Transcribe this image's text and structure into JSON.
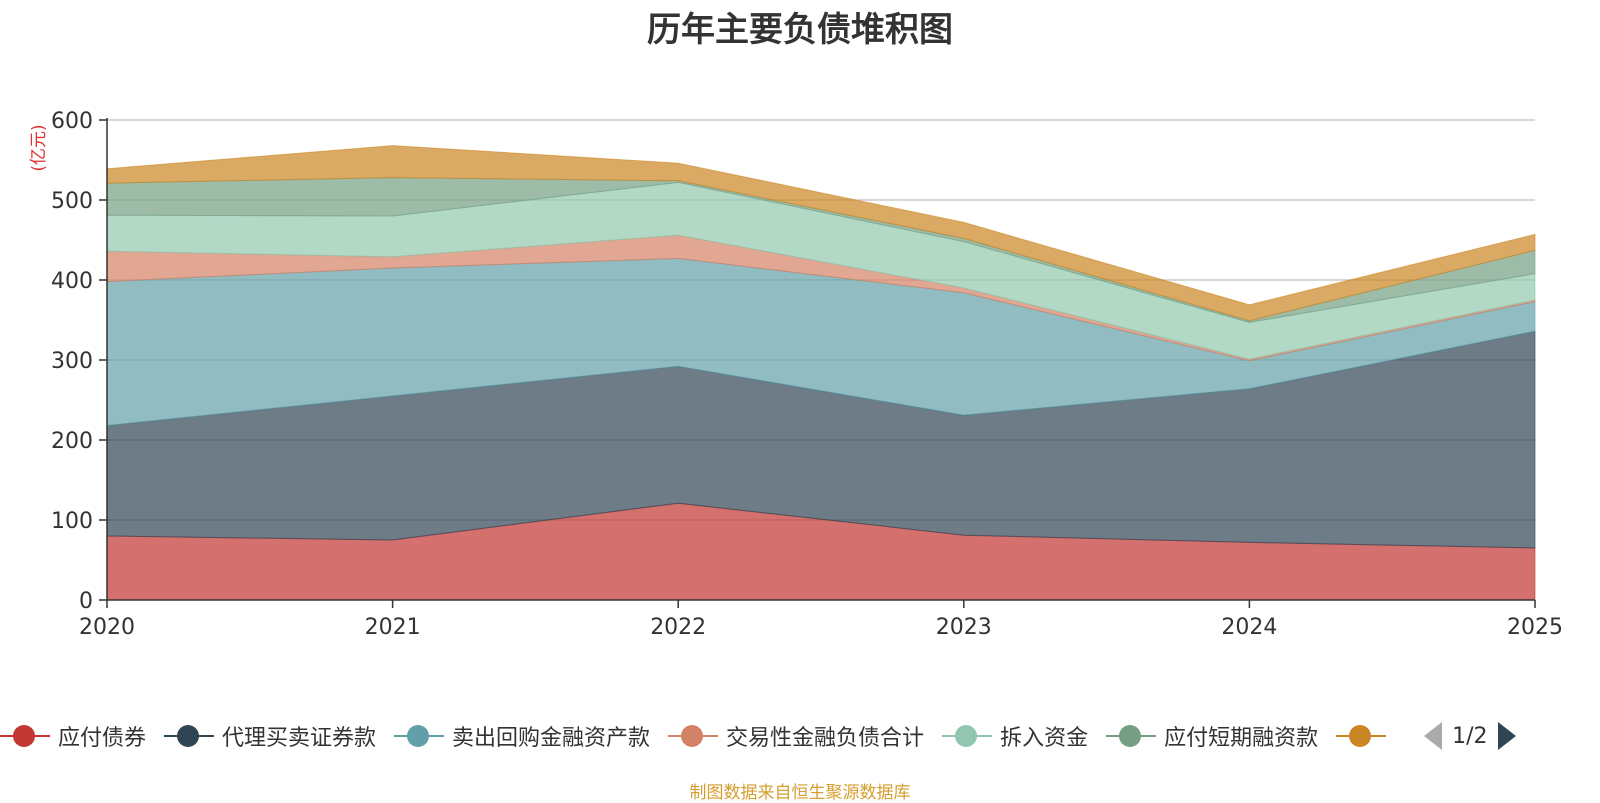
{
  "chart_data": {
    "type": "area",
    "stacked": true,
    "title": "历年主要负债堆积图",
    "ylabel": "(亿元)",
    "xlabel": "",
    "x": [
      "2020",
      "2021",
      "2022",
      "2023",
      "2024",
      "2025"
    ],
    "ylim": [
      0,
      600
    ],
    "yticks": [
      0,
      100,
      200,
      300,
      400,
      500,
      600
    ],
    "grid": true,
    "series": [
      {
        "name": "应付债券",
        "color": "#c23531",
        "values": [
          80,
          75,
          121,
          81,
          72,
          65
        ]
      },
      {
        "name": "代理买卖证券款",
        "color": "#2f4554",
        "values": [
          138,
          180,
          171,
          150,
          192,
          271
        ]
      },
      {
        "name": "卖出回购金融资产款",
        "color": "#61a0a8",
        "values": [
          180,
          160,
          135,
          153,
          35,
          37
        ]
      },
      {
        "name": "交易性金融负债合计",
        "color": "#d48265",
        "values": [
          38,
          14,
          29,
          6,
          2,
          2
        ]
      },
      {
        "name": "拆入资金",
        "color": "#91c7ae",
        "values": [
          45,
          51,
          66,
          58,
          46,
          33
        ]
      },
      {
        "name": "应付短期融资款",
        "color": "#749f83",
        "values": [
          40,
          48,
          2,
          4,
          2,
          29
        ]
      },
      {
        "name": "",
        "color": "#ca8622",
        "values": [
          18,
          40,
          22,
          20,
          20,
          20
        ]
      }
    ],
    "legend_position": "bottom"
  },
  "legend": {
    "page": "1/2"
  },
  "footer": "制图数据来自恒生聚源数据库"
}
